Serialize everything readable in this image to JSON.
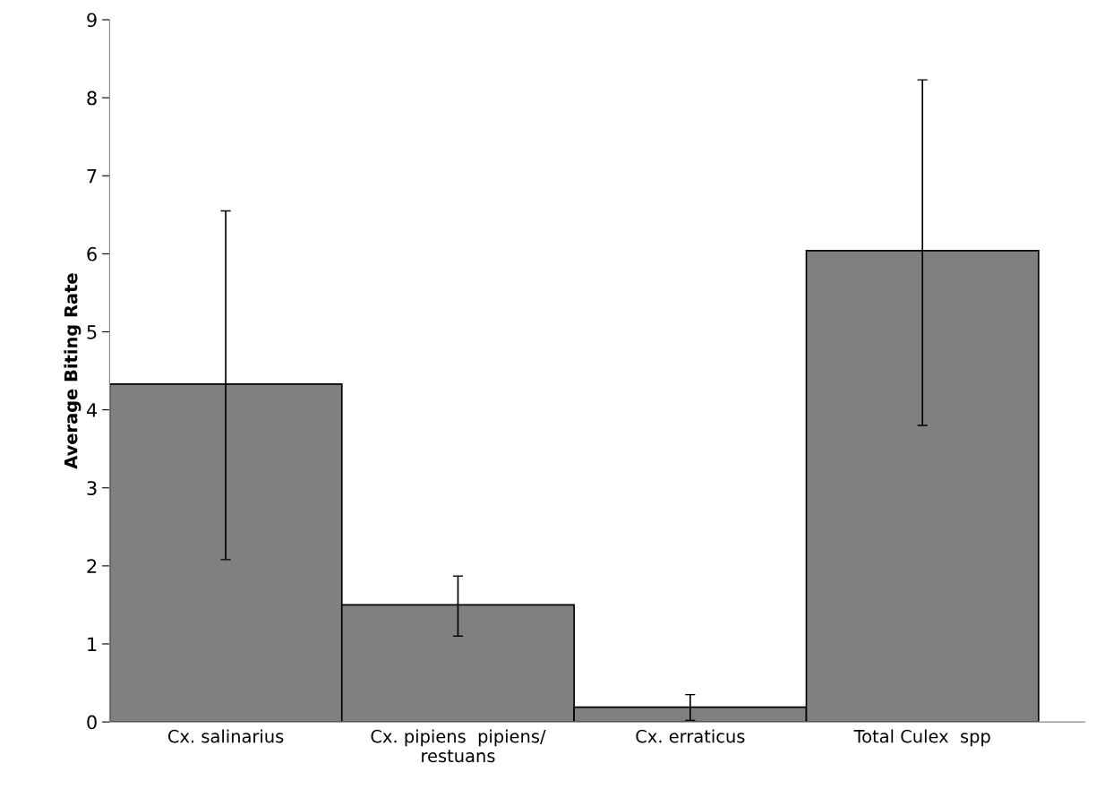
{
  "chart_data": {
    "type": "bar",
    "ylabel": "Average Biting Rate",
    "categories": [
      "Cx. salinarius",
      "Cx. pipiens  pipiens/\nrestuans",
      "Cx. erraticus",
      "Total Culex  spp"
    ],
    "values": [
      4.33,
      1.5,
      0.19,
      6.04
    ],
    "errors": [
      [
        2.08,
        6.55
      ],
      [
        1.1,
        1.87
      ],
      [
        0.02,
        0.35
      ],
      [
        3.8,
        8.23
      ]
    ],
    "color": "#808080",
    "ylim": [
      0,
      9
    ],
    "yticks": [
      0,
      1,
      2,
      3,
      4,
      5,
      6,
      7,
      8,
      9
    ],
    "grid": false,
    "legend": false
  }
}
